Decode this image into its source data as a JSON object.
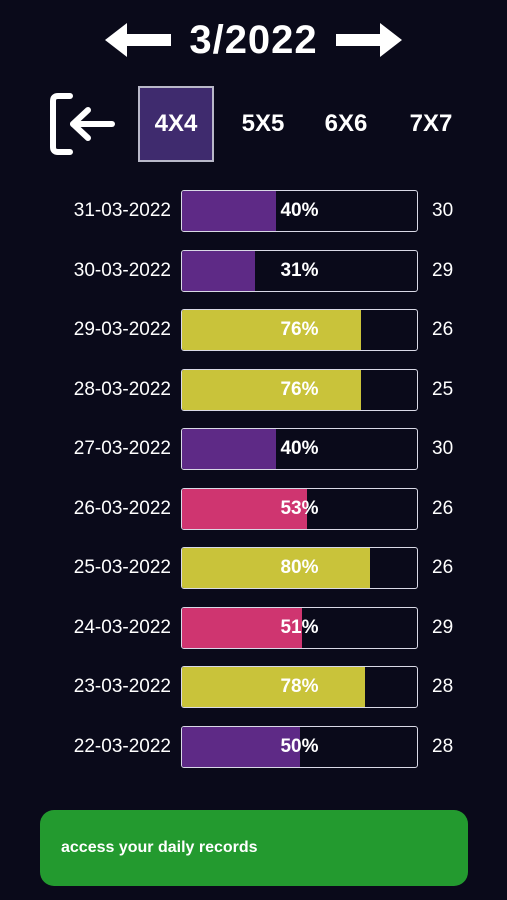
{
  "header": {
    "month": "3/2022",
    "prev_icon": "arrow-left-icon",
    "next_icon": "arrow-right-icon"
  },
  "toolbar": {
    "exit_icon": "exit-icon",
    "tabs": [
      {
        "label": "4X4",
        "active": true
      },
      {
        "label": "5X5",
        "active": false
      },
      {
        "label": "6X6",
        "active": false
      },
      {
        "label": "7X7",
        "active": false
      }
    ]
  },
  "colors": {
    "background": "#0a0a1a",
    "purple": "#5e2a86",
    "yellow": "#c9c33a",
    "pink": "#cf3570",
    "active_tab": "#3f2b6e",
    "footer_button": "#239a2f"
  },
  "records": [
    {
      "date": "31-03-2022",
      "percent": 40,
      "label": "40%",
      "count": "30",
      "color": "purple"
    },
    {
      "date": "30-03-2022",
      "percent": 31,
      "label": "31%",
      "count": "29",
      "color": "purple"
    },
    {
      "date": "29-03-2022",
      "percent": 76,
      "label": "76%",
      "count": "26",
      "color": "yellow"
    },
    {
      "date": "28-03-2022",
      "percent": 76,
      "label": "76%",
      "count": "25",
      "color": "yellow"
    },
    {
      "date": "27-03-2022",
      "percent": 40,
      "label": "40%",
      "count": "30",
      "color": "purple"
    },
    {
      "date": "26-03-2022",
      "percent": 53,
      "label": "53%",
      "count": "26",
      "color": "pink"
    },
    {
      "date": "25-03-2022",
      "percent": 80,
      "label": "80%",
      "count": "26",
      "color": "yellow"
    },
    {
      "date": "24-03-2022",
      "percent": 51,
      "label": "51%",
      "count": "29",
      "color": "pink"
    },
    {
      "date": "23-03-2022",
      "percent": 78,
      "label": "78%",
      "count": "28",
      "color": "yellow"
    },
    {
      "date": "22-03-2022",
      "percent": 50,
      "label": "50%",
      "count": "28",
      "color": "purple"
    }
  ],
  "footer": {
    "button_label": "access your daily records"
  }
}
